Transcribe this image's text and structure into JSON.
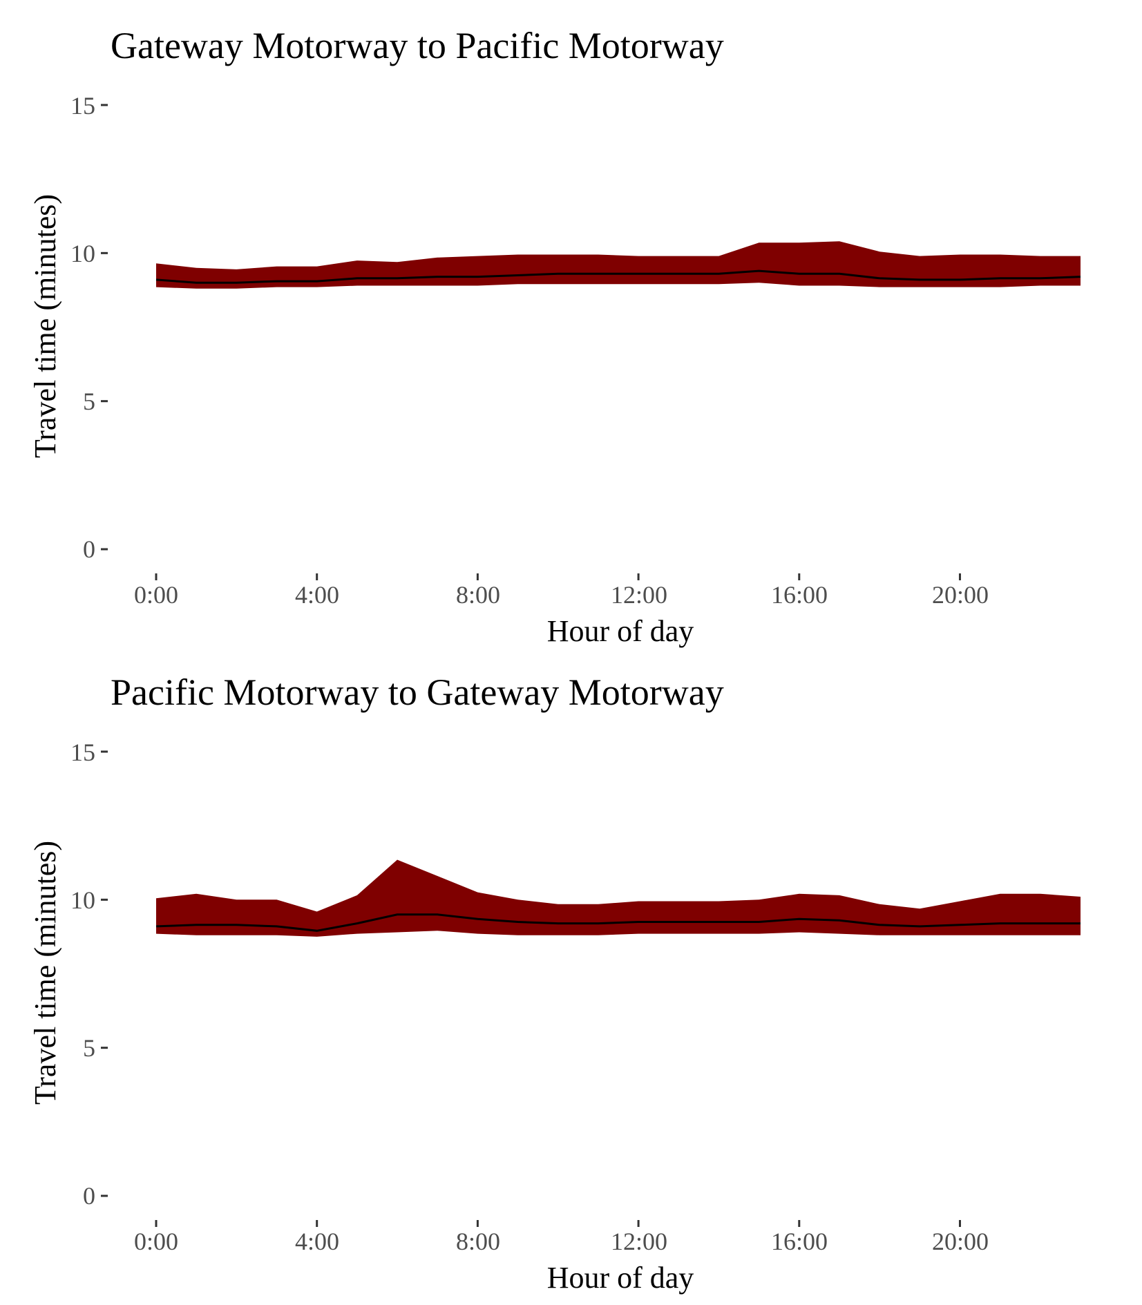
{
  "chart_data": [
    {
      "type": "area",
      "title": "Gateway Motorway to Pacific Motorway",
      "xlabel": "Hour of day",
      "ylabel": "Travel time (minutes)",
      "x_ticks": [
        "0:00",
        "4:00",
        "8:00",
        "12:00",
        "16:00",
        "20:00"
      ],
      "y_ticks": [
        "0",
        "5",
        "10",
        "15"
      ],
      "xlim": [
        0,
        23
      ],
      "ylim": [
        0,
        15
      ],
      "grid": false,
      "band_color": "#7f0000",
      "line_color": "#000000",
      "x": [
        0,
        1,
        2,
        3,
        4,
        5,
        6,
        7,
        8,
        9,
        10,
        11,
        12,
        13,
        14,
        15,
        16,
        17,
        18,
        19,
        20,
        21,
        22,
        23
      ],
      "upper": [
        9.65,
        9.5,
        9.45,
        9.55,
        9.55,
        9.75,
        9.7,
        9.85,
        9.9,
        9.95,
        9.95,
        9.95,
        9.9,
        9.9,
        9.9,
        10.35,
        10.35,
        10.4,
        10.05,
        9.9,
        9.95,
        9.95,
        9.9,
        9.9
      ],
      "median": [
        9.1,
        9.0,
        9.0,
        9.05,
        9.05,
        9.15,
        9.15,
        9.2,
        9.2,
        9.25,
        9.3,
        9.3,
        9.3,
        9.3,
        9.3,
        9.4,
        9.3,
        9.3,
        9.15,
        9.1,
        9.1,
        9.15,
        9.15,
        9.2
      ],
      "lower": [
        8.85,
        8.8,
        8.8,
        8.85,
        8.85,
        8.9,
        8.9,
        8.9,
        8.9,
        8.95,
        8.95,
        8.95,
        8.95,
        8.95,
        8.95,
        9.0,
        8.9,
        8.9,
        8.85,
        8.85,
        8.85,
        8.85,
        8.9,
        8.9
      ]
    },
    {
      "type": "area",
      "title": "Pacific Motorway to Gateway Motorway",
      "xlabel": "Hour of day",
      "ylabel": "Travel time (minutes)",
      "x_ticks": [
        "0:00",
        "4:00",
        "8:00",
        "12:00",
        "16:00",
        "20:00"
      ],
      "y_ticks": [
        "0",
        "5",
        "10",
        "15"
      ],
      "xlim": [
        0,
        23
      ],
      "ylim": [
        0,
        15
      ],
      "grid": false,
      "band_color": "#7f0000",
      "line_color": "#000000",
      "x": [
        0,
        1,
        2,
        3,
        4,
        5,
        6,
        7,
        8,
        9,
        10,
        11,
        12,
        13,
        14,
        15,
        16,
        17,
        18,
        19,
        20,
        21,
        22,
        23
      ],
      "upper": [
        10.05,
        10.2,
        10.0,
        10.0,
        9.6,
        10.15,
        11.35,
        10.8,
        10.25,
        10.0,
        9.85,
        9.85,
        9.95,
        9.95,
        9.95,
        10.0,
        10.2,
        10.15,
        9.85,
        9.7,
        9.95,
        10.2,
        10.2,
        10.1
      ],
      "median": [
        9.1,
        9.15,
        9.15,
        9.1,
        8.95,
        9.2,
        9.5,
        9.5,
        9.35,
        9.25,
        9.2,
        9.2,
        9.25,
        9.25,
        9.25,
        9.25,
        9.35,
        9.3,
        9.15,
        9.1,
        9.15,
        9.2,
        9.2,
        9.2
      ],
      "lower": [
        8.85,
        8.8,
        8.8,
        8.8,
        8.75,
        8.85,
        8.9,
        8.95,
        8.85,
        8.8,
        8.8,
        8.8,
        8.85,
        8.85,
        8.85,
        8.85,
        8.9,
        8.85,
        8.8,
        8.8,
        8.8,
        8.8,
        8.8,
        8.8
      ]
    }
  ]
}
